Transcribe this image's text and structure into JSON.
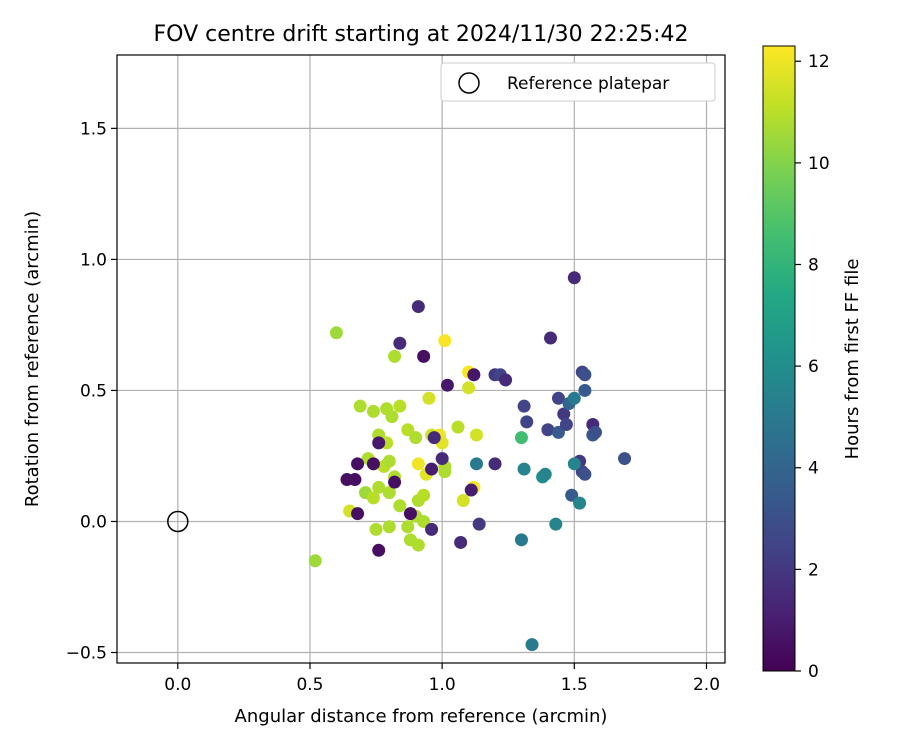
{
  "chart_data": {
    "type": "scatter",
    "title": "FOV centre drift starting at 2024/11/30 22:25:42",
    "xlabel": "Angular distance from reference (arcmin)",
    "ylabel": "Rotation from reference (arcmin)",
    "xlim": [
      -0.23,
      2.07
    ],
    "ylim": [
      -0.54,
      1.78
    ],
    "xticks": [
      0.0,
      0.5,
      1.0,
      1.5,
      2.0
    ],
    "xtick_labels": [
      "0.0",
      "0.5",
      "1.0",
      "1.5",
      "2.0"
    ],
    "yticks": [
      -0.5,
      0.0,
      0.5,
      1.0,
      1.5
    ],
    "ytick_labels": [
      "−0.5",
      "0.0",
      "0.5",
      "1.0",
      "1.5"
    ],
    "grid": true,
    "legend": {
      "position": "top-right",
      "entries": [
        "Reference platepar"
      ]
    },
    "reference_point": {
      "x": 0.0,
      "y": 0.0,
      "label": "Reference platepar"
    },
    "colorbar": {
      "label": "Hours from first FF file",
      "min": 0,
      "max": 12.3,
      "ticks": [
        0,
        2,
        4,
        6,
        8,
        10,
        12
      ],
      "tick_labels": [
        "0",
        "2",
        "4",
        "6",
        "8",
        "10",
        "12"
      ],
      "colormap": "viridis"
    },
    "series": [
      {
        "name": "drift",
        "points": [
          {
            "x": 0.6,
            "y": 0.72,
            "c": 10.5
          },
          {
            "x": 0.52,
            "y": -0.15,
            "c": 10.5
          },
          {
            "x": 0.82,
            "y": 0.63,
            "c": 10.8
          },
          {
            "x": 0.69,
            "y": 0.44,
            "c": 10.8
          },
          {
            "x": 0.74,
            "y": 0.42,
            "c": 10.8
          },
          {
            "x": 0.79,
            "y": 0.43,
            "c": 10.8
          },
          {
            "x": 0.84,
            "y": 0.44,
            "c": 11.0
          },
          {
            "x": 0.81,
            "y": 0.4,
            "c": 10.8
          },
          {
            "x": 0.76,
            "y": 0.33,
            "c": 10.8
          },
          {
            "x": 0.79,
            "y": 0.3,
            "c": 11.0
          },
          {
            "x": 0.72,
            "y": 0.24,
            "c": 10.8
          },
          {
            "x": 0.78,
            "y": 0.21,
            "c": 11.0
          },
          {
            "x": 0.8,
            "y": 0.23,
            "c": 10.8
          },
          {
            "x": 0.82,
            "y": 0.17,
            "c": 10.8
          },
          {
            "x": 0.76,
            "y": 0.13,
            "c": 10.8
          },
          {
            "x": 0.71,
            "y": 0.11,
            "c": 10.5
          },
          {
            "x": 0.74,
            "y": 0.09,
            "c": 11.0
          },
          {
            "x": 0.8,
            "y": 0.11,
            "c": 10.8
          },
          {
            "x": 0.84,
            "y": 0.06,
            "c": 10.8
          },
          {
            "x": 0.65,
            "y": 0.04,
            "c": 11.5
          },
          {
            "x": 0.75,
            "y": -0.03,
            "c": 10.8
          },
          {
            "x": 0.8,
            "y": -0.02,
            "c": 10.8
          },
          {
            "x": 0.87,
            "y": -0.02,
            "c": 10.8
          },
          {
            "x": 0.88,
            "y": -0.07,
            "c": 10.8
          },
          {
            "x": 0.91,
            "y": -0.09,
            "c": 10.8
          },
          {
            "x": 0.87,
            "y": 0.35,
            "c": 11.0
          },
          {
            "x": 0.9,
            "y": 0.32,
            "c": 10.8
          },
          {
            "x": 0.95,
            "y": 0.47,
            "c": 11.5
          },
          {
            "x": 0.96,
            "y": 0.33,
            "c": 11.5
          },
          {
            "x": 0.99,
            "y": 0.33,
            "c": 12.0
          },
          {
            "x": 1.0,
            "y": 0.3,
            "c": 11.8
          },
          {
            "x": 1.01,
            "y": 0.69,
            "c": 12.2
          },
          {
            "x": 0.91,
            "y": 0.22,
            "c": 12.0
          },
          {
            "x": 0.94,
            "y": 0.18,
            "c": 11.8
          },
          {
            "x": 1.01,
            "y": 0.21,
            "c": 10.8
          },
          {
            "x": 1.01,
            "y": 0.19,
            "c": 10.8
          },
          {
            "x": 0.91,
            "y": 0.08,
            "c": 10.8
          },
          {
            "x": 0.93,
            "y": 0.1,
            "c": 11.0
          },
          {
            "x": 0.9,
            "y": 0.02,
            "c": 10.8
          },
          {
            "x": 0.93,
            "y": 0.0,
            "c": 10.8
          },
          {
            "x": 1.06,
            "y": 0.36,
            "c": 11.0
          },
          {
            "x": 1.1,
            "y": 0.51,
            "c": 11.5
          },
          {
            "x": 1.1,
            "y": 0.57,
            "c": 12.2
          },
          {
            "x": 1.13,
            "y": 0.33,
            "c": 11.5
          },
          {
            "x": 1.08,
            "y": 0.08,
            "c": 11.5
          },
          {
            "x": 1.12,
            "y": 0.13,
            "c": 12.2
          },
          {
            "x": 0.91,
            "y": 0.82,
            "c": 1.5
          },
          {
            "x": 0.84,
            "y": 0.68,
            "c": 1.5
          },
          {
            "x": 0.93,
            "y": 0.63,
            "c": 0.5
          },
          {
            "x": 1.02,
            "y": 0.52,
            "c": 0.8
          },
          {
            "x": 1.12,
            "y": 0.56,
            "c": 0.8
          },
          {
            "x": 0.76,
            "y": 0.3,
            "c": 0.8
          },
          {
            "x": 0.68,
            "y": 0.22,
            "c": 0.5
          },
          {
            "x": 0.74,
            "y": 0.22,
            "c": 0.5
          },
          {
            "x": 0.64,
            "y": 0.16,
            "c": 0.5
          },
          {
            "x": 0.67,
            "y": 0.16,
            "c": 0.5
          },
          {
            "x": 0.82,
            "y": 0.15,
            "c": 0.5
          },
          {
            "x": 0.68,
            "y": 0.03,
            "c": 0.5
          },
          {
            "x": 0.76,
            "y": -0.11,
            "c": 0.5
          },
          {
            "x": 0.88,
            "y": 0.03,
            "c": 0.5
          },
          {
            "x": 0.96,
            "y": -0.03,
            "c": 1.5
          },
          {
            "x": 0.96,
            "y": 0.2,
            "c": 1.0
          },
          {
            "x": 0.97,
            "y": 0.32,
            "c": 1.5
          },
          {
            "x": 1.0,
            "y": 0.24,
            "c": 1.5
          },
          {
            "x": 1.11,
            "y": 0.12,
            "c": 1.0
          },
          {
            "x": 1.07,
            "y": -0.08,
            "c": 1.5
          },
          {
            "x": 1.14,
            "y": -0.01,
            "c": 2.0
          },
          {
            "x": 1.2,
            "y": 0.22,
            "c": 1.5
          },
          {
            "x": 1.13,
            "y": 0.22,
            "c": 5.0
          },
          {
            "x": 1.2,
            "y": 0.56,
            "c": 2.0
          },
          {
            "x": 1.22,
            "y": 0.56,
            "c": 2.5
          },
          {
            "x": 1.24,
            "y": 0.54,
            "c": 1.5
          },
          {
            "x": 1.31,
            "y": 0.44,
            "c": 2.5
          },
          {
            "x": 1.32,
            "y": 0.38,
            "c": 2.5
          },
          {
            "x": 1.41,
            "y": 0.7,
            "c": 1.5
          },
          {
            "x": 1.4,
            "y": 0.35,
            "c": 2.5
          },
          {
            "x": 1.44,
            "y": 0.34,
            "c": 3.5
          },
          {
            "x": 1.44,
            "y": 0.47,
            "c": 2.5
          },
          {
            "x": 1.46,
            "y": 0.41,
            "c": 2.0
          },
          {
            "x": 1.47,
            "y": 0.37,
            "c": 2.5
          },
          {
            "x": 1.48,
            "y": 0.45,
            "c": 4.0
          },
          {
            "x": 1.5,
            "y": 0.47,
            "c": 5.0
          },
          {
            "x": 1.5,
            "y": 0.93,
            "c": 1.5
          },
          {
            "x": 1.53,
            "y": 0.57,
            "c": 2.5
          },
          {
            "x": 1.54,
            "y": 0.56,
            "c": 3.0
          },
          {
            "x": 1.54,
            "y": 0.5,
            "c": 3.5
          },
          {
            "x": 1.57,
            "y": 0.37,
            "c": 1.5
          },
          {
            "x": 1.57,
            "y": 0.33,
            "c": 3.5
          },
          {
            "x": 1.58,
            "y": 0.34,
            "c": 3.0
          },
          {
            "x": 1.69,
            "y": 0.24,
            "c": 3.0
          },
          {
            "x": 1.52,
            "y": 0.23,
            "c": 2.0
          },
          {
            "x": 1.53,
            "y": 0.19,
            "c": 2.5
          },
          {
            "x": 1.54,
            "y": 0.18,
            "c": 3.0
          },
          {
            "x": 1.5,
            "y": 0.22,
            "c": 5.5
          },
          {
            "x": 1.49,
            "y": 0.1,
            "c": 3.5
          },
          {
            "x": 1.52,
            "y": 0.07,
            "c": 5.5
          },
          {
            "x": 1.3,
            "y": 0.32,
            "c": 8.5
          },
          {
            "x": 1.31,
            "y": 0.2,
            "c": 5.5
          },
          {
            "x": 1.38,
            "y": 0.17,
            "c": 6.0
          },
          {
            "x": 1.39,
            "y": 0.18,
            "c": 5.5
          },
          {
            "x": 1.3,
            "y": -0.07,
            "c": 5.0
          },
          {
            "x": 1.43,
            "y": -0.01,
            "c": 5.5
          },
          {
            "x": 1.34,
            "y": -0.47,
            "c": 5.0
          }
        ]
      }
    ]
  }
}
